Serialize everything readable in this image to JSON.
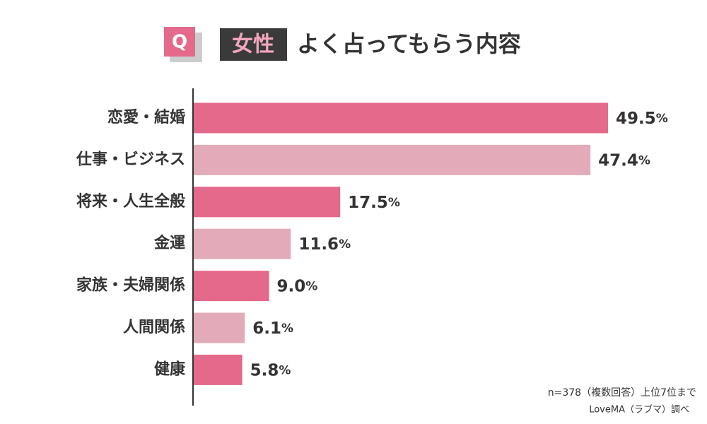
{
  "chart_data": {
    "type": "bar",
    "orientation": "horizontal",
    "badge": "Q",
    "tag": "女性",
    "title": "よく占ってもらう内容",
    "categories": [
      "恋愛・結婚",
      "仕事・ビジネス",
      "将来・人生全般",
      "金運",
      "家族・夫婦関係",
      "人間関係",
      "健康"
    ],
    "values": [
      49.5,
      47.4,
      17.5,
      11.6,
      9.0,
      6.1,
      5.8
    ],
    "value_labels": [
      "49.5",
      "47.4",
      "17.5",
      "11.6",
      "9.0",
      "6.1",
      "5.8"
    ],
    "unit": "%",
    "colors": [
      "#e4698a",
      "#e3abba",
      "#e4698a",
      "#e3abba",
      "#e4698a",
      "#e3abba",
      "#e4698a"
    ],
    "notes": [
      "n=378（複数回答）上位7位まで",
      "LoveMA（ラブマ）調べ"
    ]
  }
}
